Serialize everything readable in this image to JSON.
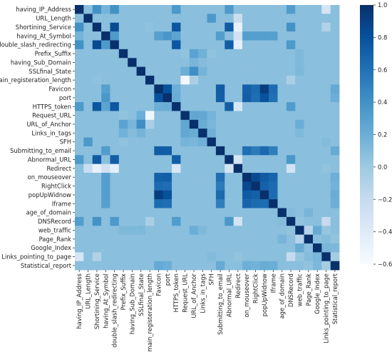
{
  "chart_data": {
    "type": "heatmap",
    "title": "",
    "xlabel": "",
    "ylabel": "",
    "labels": [
      "having_IP_Address",
      "URL_Length",
      "Shortining_Service",
      "having_At_Symbol",
      "double_slash_redirecting",
      "Prefix_Suffix",
      "having_Sub_Domain",
      "SSLfinal_State",
      "Domain_registeration_length",
      "Favicon",
      "port",
      "HTTPS_token",
      "Request_URL",
      "URL_of_Anchor",
      "Links_in_tags",
      "SFH",
      "Submitting_to_email",
      "Abnormal_URL",
      "Redirect",
      "on_mouseover",
      "RightClick",
      "popUpWidnow",
      "Iframe",
      "age_of_domain",
      "DNSRecord",
      "web_traffic",
      "Page_Rank",
      "Google_Index",
      "Links_pointing_to_page",
      "Statistical_report"
    ],
    "colorbar": {
      "min": -0.6,
      "max": 1.0,
      "ticks": [
        1.0,
        0.8,
        0.6,
        0.4,
        0.2,
        0.0,
        -0.2,
        -0.4,
        -0.6
      ],
      "tick_labels": [
        "1.0",
        "0.8",
        "0.6",
        "0.4",
        "0.2",
        "0.0",
        "−0.2",
        "−0.4",
        "−0.6"
      ],
      "colormap": "Blues",
      "color_low": "#f7fbff",
      "color_high": "#08306b"
    },
    "strong_pairs": [
      [
        0,
        2,
        0.4
      ],
      [
        0,
        3,
        0.16
      ],
      [
        0,
        4,
        0.4
      ],
      [
        0,
        11,
        0.35
      ],
      [
        0,
        17,
        0.34
      ],
      [
        0,
        24,
        0.32
      ],
      [
        0,
        28,
        -0.32
      ],
      [
        1,
        15,
        0.35
      ],
      [
        1,
        18,
        -0.23
      ],
      [
        1,
        22,
        0.08
      ],
      [
        2,
        4,
        0.84
      ],
      [
        2,
        8,
        0.06
      ],
      [
        2,
        11,
        0.76
      ],
      [
        2,
        17,
        0.74
      ],
      [
        2,
        18,
        -0.48
      ],
      [
        2,
        24,
        0.39
      ],
      [
        2,
        28,
        -0.09
      ],
      [
        3,
        4,
        0.34
      ],
      [
        3,
        9,
        0.3
      ],
      [
        3,
        10,
        0.36
      ],
      [
        3,
        11,
        0.27
      ],
      [
        3,
        16,
        0.32
      ],
      [
        3,
        19,
        0.31
      ],
      [
        3,
        20,
        0.31
      ],
      [
        3,
        21,
        0.31
      ],
      [
        3,
        22,
        0.3
      ],
      [
        3,
        18,
        -0.28
      ],
      [
        4,
        11,
        0.76
      ],
      [
        4,
        17,
        0.72
      ],
      [
        4,
        18,
        -0.45
      ],
      [
        4,
        24,
        0.35
      ],
      [
        5,
        12,
        0.05
      ],
      [
        5,
        13,
        0.28
      ],
      [
        5,
        14,
        0.18
      ],
      [
        5,
        15,
        0.05
      ],
      [
        5,
        25,
        0.12
      ],
      [
        6,
        13,
        0.15
      ],
      [
        6,
        14,
        0.1
      ],
      [
        6,
        25,
        0.12
      ],
      [
        7,
        12,
        0.2
      ],
      [
        7,
        13,
        0.42
      ],
      [
        7,
        14,
        0.16
      ],
      [
        7,
        25,
        0.13
      ],
      [
        8,
        12,
        -0.55
      ],
      [
        8,
        13,
        -0.06
      ],
      [
        8,
        24,
        -0.06
      ],
      [
        9,
        10,
        0.8
      ],
      [
        9,
        11,
        0.2
      ],
      [
        9,
        16,
        0.73
      ],
      [
        9,
        19,
        0.7
      ],
      [
        9,
        20,
        0.64
      ],
      [
        9,
        21,
        0.92
      ],
      [
        9,
        22,
        0.63
      ],
      [
        9,
        29,
        0.23
      ],
      [
        10,
        11,
        0.21
      ],
      [
        10,
        16,
        0.72
      ],
      [
        10,
        19,
        0.71
      ],
      [
        10,
        20,
        0.62
      ],
      [
        10,
        21,
        0.8
      ],
      [
        10,
        22,
        0.61
      ],
      [
        10,
        29,
        0.2
      ],
      [
        11,
        17,
        0.72
      ],
      [
        11,
        18,
        -0.35
      ],
      [
        11,
        24,
        0.33
      ],
      [
        12,
        13,
        0.25
      ],
      [
        12,
        14,
        0.24
      ],
      [
        12,
        15,
        0.16
      ],
      [
        13,
        14,
        0.21
      ],
      [
        13,
        15,
        0.14
      ],
      [
        13,
        25,
        0.2
      ],
      [
        14,
        15,
        0.18
      ],
      [
        14,
        25,
        0.12
      ],
      [
        15,
        28,
        0.11
      ],
      [
        16,
        19,
        0.62
      ],
      [
        16,
        20,
        0.54
      ],
      [
        16,
        21,
        0.65
      ],
      [
        16,
        22,
        0.52
      ],
      [
        16,
        29,
        0.22
      ],
      [
        17,
        18,
        -0.32
      ],
      [
        17,
        24,
        0.36
      ],
      [
        18,
        24,
        -0.3
      ],
      [
        18,
        28,
        0.05
      ],
      [
        19,
        20,
        0.85
      ],
      [
        19,
        21,
        0.74
      ],
      [
        19,
        22,
        0.68
      ],
      [
        19,
        29,
        0.19
      ],
      [
        20,
        21,
        0.7
      ],
      [
        20,
        22,
        0.64
      ],
      [
        20,
        29,
        0.17
      ],
      [
        21,
        22,
        0.63
      ],
      [
        21,
        29,
        0.21
      ],
      [
        22,
        29,
        0.2
      ],
      [
        23,
        24,
        0.1
      ],
      [
        23,
        26,
        0.15
      ],
      [
        23,
        27,
        0.08
      ],
      [
        24,
        25,
        0.05
      ],
      [
        24,
        28,
        -0.2
      ],
      [
        25,
        26,
        -0.12
      ],
      [
        25,
        27,
        0.22
      ],
      [
        25,
        28,
        0.03
      ],
      [
        26,
        27,
        0.08
      ],
      [
        26,
        28,
        0.1
      ],
      [
        26,
        29,
        0.05
      ],
      [
        27,
        28,
        0.14
      ],
      [
        27,
        29,
        0.13
      ],
      [
        28,
        29,
        -0.03
      ]
    ],
    "default_value": 0.08,
    "grid": false
  }
}
